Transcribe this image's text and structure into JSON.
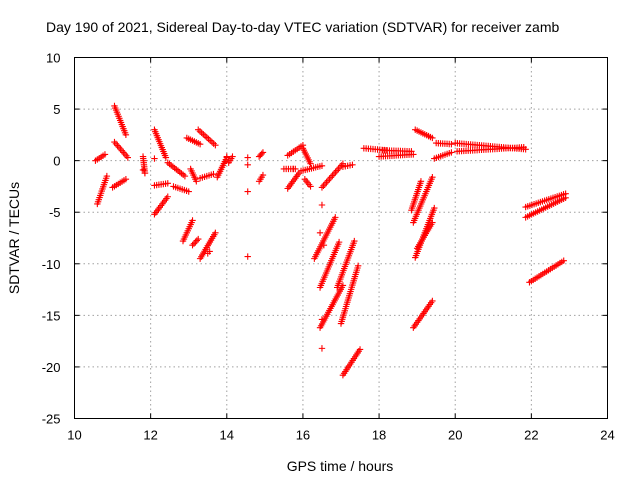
{
  "chart_data": {
    "type": "scatter",
    "title": "Day 190 of 2021, Sidereal Day-to-day VTEC variation (SDTVAR) for receiver zamb",
    "xlabel": "GPS time / hours",
    "ylabel": "SDTVAR / TECUs",
    "xlim": [
      10,
      24
    ],
    "ylim": [
      -25,
      10
    ],
    "xticks": [
      "10",
      "12",
      "14",
      "16",
      "18",
      "20",
      "22",
      "24"
    ],
    "yticks": [
      "-25",
      "-20",
      "-15",
      "-10",
      "-5",
      "0",
      "5",
      "10"
    ],
    "grid": true,
    "marker": "+",
    "color": "#ff0000",
    "segments": [
      {
        "x0": 10.55,
        "y0": 0.0,
        "x1": 10.8,
        "y1": 0.6
      },
      {
        "x0": 10.6,
        "y0": -4.2,
        "x1": 10.85,
        "y1": -1.5
      },
      {
        "x0": 11.05,
        "y0": 5.3,
        "x1": 11.35,
        "y1": 2.5
      },
      {
        "x0": 11.05,
        "y0": 1.8,
        "x1": 11.4,
        "y1": 0.3
      },
      {
        "x0": 11.0,
        "y0": -2.6,
        "x1": 11.35,
        "y1": -1.8
      },
      {
        "x0": 11.8,
        "y0": 0.4,
        "x1": 11.85,
        "y1": -1.2
      },
      {
        "x0": 12.1,
        "y0": 3.0,
        "x1": 12.4,
        "y1": 0.3
      },
      {
        "x0": 12.1,
        "y0": -2.4,
        "x1": 12.45,
        "y1": -2.2
      },
      {
        "x0": 12.1,
        "y0": -5.2,
        "x1": 12.45,
        "y1": -3.5
      },
      {
        "x0": 12.45,
        "y0": -0.2,
        "x1": 12.9,
        "y1": -1.5
      },
      {
        "x0": 12.6,
        "y0": -2.5,
        "x1": 13.0,
        "y1": -3.0
      },
      {
        "x0": 12.95,
        "y0": 2.2,
        "x1": 13.3,
        "y1": 1.6
      },
      {
        "x0": 13.05,
        "y0": -0.8,
        "x1": 13.2,
        "y1": -2.0
      },
      {
        "x0": 13.25,
        "y0": 3.0,
        "x1": 13.7,
        "y1": 1.5
      },
      {
        "x0": 12.85,
        "y0": -7.8,
        "x1": 13.1,
        "y1": -5.8
      },
      {
        "x0": 13.1,
        "y0": -8.2,
        "x1": 13.25,
        "y1": -7.6
      },
      {
        "x0": 13.3,
        "y0": -9.5,
        "x1": 13.7,
        "y1": -7.0
      },
      {
        "x0": 13.3,
        "y0": -1.7,
        "x1": 13.65,
        "y1": -1.3
      },
      {
        "x0": 13.75,
        "y0": -1.6,
        "x1": 14.0,
        "y1": 0.3
      },
      {
        "x0": 14.05,
        "y0": -0.2,
        "x1": 14.15,
        "y1": 0.4
      },
      {
        "x0": 14.85,
        "y0": -2.0,
        "x1": 14.95,
        "y1": -1.4
      },
      {
        "x0": 14.85,
        "y0": 0.4,
        "x1": 14.95,
        "y1": 0.8
      },
      {
        "x0": 15.5,
        "y0": -0.8,
        "x1": 15.8,
        "y1": -0.8
      },
      {
        "x0": 15.6,
        "y0": 0.5,
        "x1": 16.0,
        "y1": 1.5
      },
      {
        "x0": 16.0,
        "y0": 1.2,
        "x1": 16.2,
        "y1": -0.3
      },
      {
        "x0": 15.6,
        "y0": -2.7,
        "x1": 15.9,
        "y1": -1.2
      },
      {
        "x0": 15.95,
        "y0": -1.0,
        "x1": 16.5,
        "y1": -0.5
      },
      {
        "x0": 16.05,
        "y0": -1.8,
        "x1": 16.2,
        "y1": -2.5
      },
      {
        "x0": 16.5,
        "y0": -2.6,
        "x1": 17.05,
        "y1": -0.3
      },
      {
        "x0": 17.05,
        "y0": -0.6,
        "x1": 17.3,
        "y1": -0.4
      },
      {
        "x0": 16.3,
        "y0": -9.5,
        "x1": 16.85,
        "y1": -5.5
      },
      {
        "x0": 16.45,
        "y0": -12.3,
        "x1": 16.95,
        "y1": -7.9
      },
      {
        "x0": 16.9,
        "y0": -12.3,
        "x1": 17.35,
        "y1": -7.8
      },
      {
        "x0": 16.45,
        "y0": -16.2,
        "x1": 17.05,
        "y1": -12.1
      },
      {
        "x0": 17.0,
        "y0": -15.8,
        "x1": 17.45,
        "y1": -10.2
      },
      {
        "x0": 17.05,
        "y0": -20.8,
        "x1": 17.5,
        "y1": -18.3
      },
      {
        "x0": 17.6,
        "y0": 1.2,
        "x1": 18.2,
        "y1": 1.0
      },
      {
        "x0": 18.0,
        "y0": 0.4,
        "x1": 18.9,
        "y1": 0.6
      },
      {
        "x0": 18.1,
        "y0": 1.0,
        "x1": 18.85,
        "y1": 0.9
      },
      {
        "x0": 18.95,
        "y0": 3.0,
        "x1": 19.4,
        "y1": 2.2
      },
      {
        "x0": 19.5,
        "y0": 1.7,
        "x1": 19.9,
        "y1": 1.6
      },
      {
        "x0": 19.45,
        "y0": 0.2,
        "x1": 19.9,
        "y1": 0.8
      },
      {
        "x0": 20.0,
        "y0": 1.7,
        "x1": 21.85,
        "y1": 1.1
      },
      {
        "x0": 20.05,
        "y0": 0.9,
        "x1": 21.8,
        "y1": 1.3
      },
      {
        "x0": 18.85,
        "y0": -4.8,
        "x1": 19.1,
        "y1": -2.0
      },
      {
        "x0": 18.9,
        "y0": -6.0,
        "x1": 19.4,
        "y1": -1.6
      },
      {
        "x0": 18.95,
        "y0": -9.4,
        "x1": 19.45,
        "y1": -4.6
      },
      {
        "x0": 19.0,
        "y0": -8.5,
        "x1": 19.4,
        "y1": -6.0
      },
      {
        "x0": 18.9,
        "y0": -16.2,
        "x1": 19.4,
        "y1": -13.6
      },
      {
        "x0": 21.85,
        "y0": -4.5,
        "x1": 22.9,
        "y1": -3.2
      },
      {
        "x0": 21.85,
        "y0": -5.5,
        "x1": 22.9,
        "y1": -3.6
      },
      {
        "x0": 21.95,
        "y0": -11.8,
        "x1": 22.85,
        "y1": -9.7
      }
    ],
    "isolated_points": [
      [
        11.8,
        -0.9
      ],
      [
        11.85,
        -1.2
      ],
      [
        12.1,
        0.2
      ],
      [
        13.5,
        -9.0
      ],
      [
        13.55,
        -8.8
      ],
      [
        14.0,
        0.4
      ],
      [
        14.55,
        0.3
      ],
      [
        14.55,
        -0.4
      ],
      [
        14.55,
        -3.0
      ],
      [
        14.55,
        -9.3
      ],
      [
        15.75,
        -0.8
      ],
      [
        16.5,
        -4.3
      ],
      [
        16.45,
        -7.0
      ],
      [
        16.55,
        -8.2
      ],
      [
        16.5,
        -15.4
      ],
      [
        16.5,
        -18.2
      ]
    ]
  }
}
